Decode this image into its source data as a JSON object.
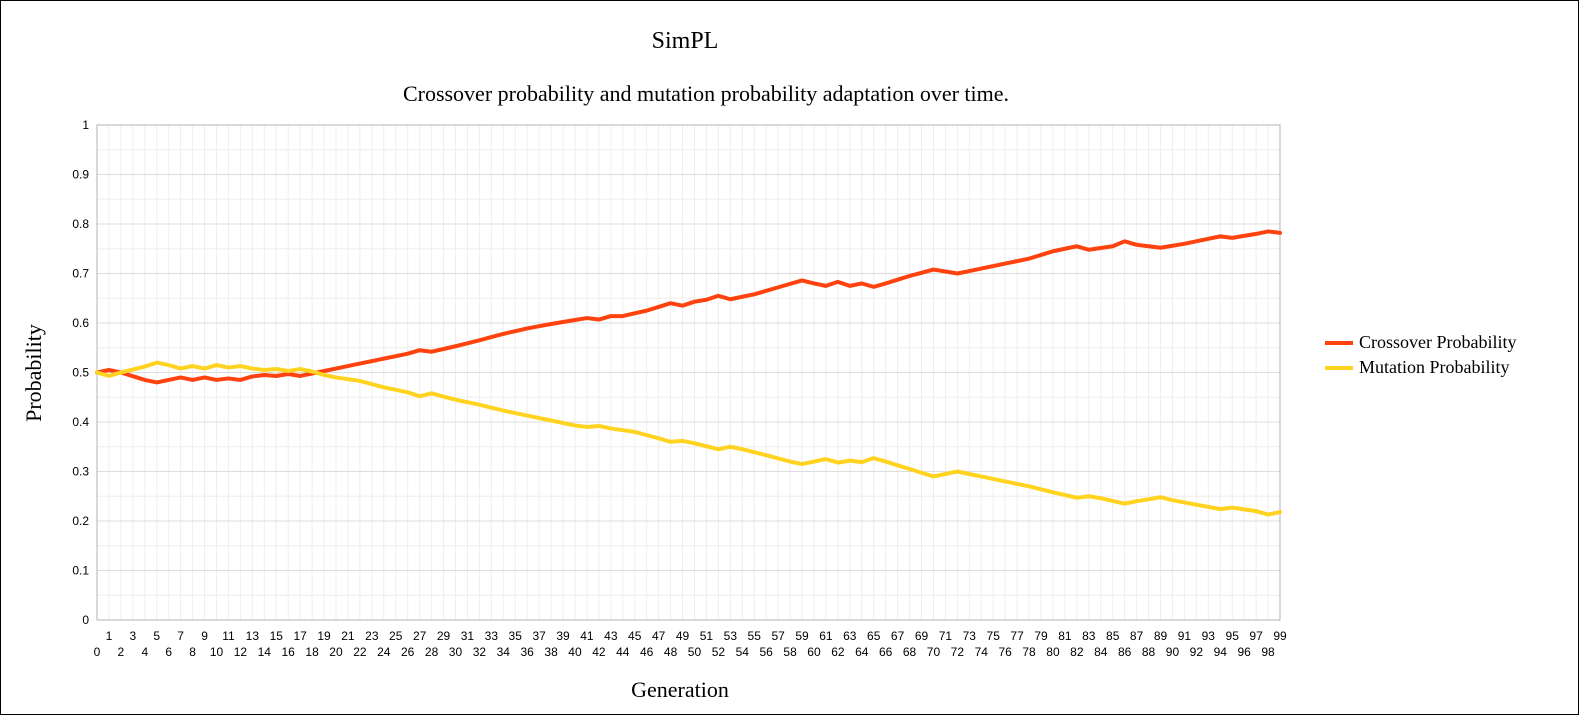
{
  "chart_data": {
    "type": "line",
    "title": "SimPL",
    "subtitle": "Crossover probability and mutation probability adaptation over time.",
    "xlabel": "Generation",
    "ylabel": "Probability",
    "ylim": [
      0,
      1
    ],
    "yticks": [
      "0",
      "0.1",
      "0.2",
      "0.3",
      "0.4",
      "0.5",
      "0.6",
      "0.7",
      "0.8",
      "0.9",
      "1"
    ],
    "xlim": [
      0,
      99
    ],
    "grid": true,
    "legend_position": "right",
    "series": [
      {
        "name": "Crossover Probability",
        "color": "#ff420e",
        "anchors": [
          [
            0,
            0.5
          ],
          [
            1,
            0.505
          ],
          [
            2,
            0.5
          ],
          [
            4,
            0.485
          ],
          [
            5,
            0.48
          ],
          [
            7,
            0.49
          ],
          [
            8,
            0.485
          ],
          [
            9,
            0.49
          ],
          [
            10,
            0.485
          ],
          [
            11,
            0.488
          ],
          [
            12,
            0.485
          ],
          [
            13,
            0.492
          ],
          [
            14,
            0.495
          ],
          [
            15,
            0.493
          ],
          [
            16,
            0.497
          ],
          [
            17,
            0.493
          ],
          [
            18,
            0.498
          ],
          [
            20,
            0.508
          ],
          [
            22,
            0.518
          ],
          [
            24,
            0.528
          ],
          [
            26,
            0.538
          ],
          [
            27,
            0.545
          ],
          [
            28,
            0.542
          ],
          [
            30,
            0.553
          ],
          [
            32,
            0.565
          ],
          [
            34,
            0.578
          ],
          [
            36,
            0.589
          ],
          [
            38,
            0.598
          ],
          [
            40,
            0.606
          ],
          [
            41,
            0.61
          ],
          [
            42,
            0.607
          ],
          [
            43,
            0.614
          ],
          [
            44,
            0.614
          ],
          [
            46,
            0.625
          ],
          [
            48,
            0.64
          ],
          [
            49,
            0.635
          ],
          [
            50,
            0.643
          ],
          [
            51,
            0.647
          ],
          [
            52,
            0.655
          ],
          [
            53,
            0.648
          ],
          [
            55,
            0.658
          ],
          [
            57,
            0.672
          ],
          [
            59,
            0.686
          ],
          [
            60,
            0.68
          ],
          [
            61,
            0.675
          ],
          [
            62,
            0.683
          ],
          [
            63,
            0.675
          ],
          [
            64,
            0.68
          ],
          [
            65,
            0.673
          ],
          [
            66,
            0.68
          ],
          [
            68,
            0.695
          ],
          [
            70,
            0.708
          ],
          [
            72,
            0.7
          ],
          [
            74,
            0.71
          ],
          [
            76,
            0.72
          ],
          [
            78,
            0.73
          ],
          [
            80,
            0.745
          ],
          [
            82,
            0.755
          ],
          [
            83,
            0.748
          ],
          [
            85,
            0.755
          ],
          [
            86,
            0.765
          ],
          [
            87,
            0.758
          ],
          [
            89,
            0.752
          ],
          [
            91,
            0.76
          ],
          [
            93,
            0.77
          ],
          [
            94,
            0.775
          ],
          [
            95,
            0.772
          ],
          [
            97,
            0.78
          ],
          [
            98,
            0.785
          ],
          [
            99,
            0.782
          ]
        ]
      },
      {
        "name": "Mutation Probability",
        "color": "#ffd320",
        "anchors": [
          [
            0,
            0.5
          ],
          [
            1,
            0.493
          ],
          [
            2,
            0.5
          ],
          [
            4,
            0.512
          ],
          [
            5,
            0.52
          ],
          [
            6,
            0.515
          ],
          [
            7,
            0.508
          ],
          [
            8,
            0.513
          ],
          [
            9,
            0.508
          ],
          [
            10,
            0.515
          ],
          [
            11,
            0.51
          ],
          [
            12,
            0.513
          ],
          [
            13,
            0.508
          ],
          [
            14,
            0.505
          ],
          [
            15,
            0.507
          ],
          [
            16,
            0.503
          ],
          [
            17,
            0.507
          ],
          [
            18,
            0.502
          ],
          [
            19,
            0.495
          ],
          [
            20,
            0.49
          ],
          [
            22,
            0.483
          ],
          [
            24,
            0.47
          ],
          [
            26,
            0.46
          ],
          [
            27,
            0.452
          ],
          [
            28,
            0.458
          ],
          [
            30,
            0.445
          ],
          [
            32,
            0.435
          ],
          [
            34,
            0.423
          ],
          [
            36,
            0.413
          ],
          [
            38,
            0.403
          ],
          [
            40,
            0.393
          ],
          [
            41,
            0.39
          ],
          [
            42,
            0.392
          ],
          [
            43,
            0.387
          ],
          [
            45,
            0.38
          ],
          [
            47,
            0.367
          ],
          [
            48,
            0.36
          ],
          [
            49,
            0.362
          ],
          [
            50,
            0.357
          ],
          [
            52,
            0.345
          ],
          [
            53,
            0.35
          ],
          [
            54,
            0.345
          ],
          [
            56,
            0.333
          ],
          [
            58,
            0.32
          ],
          [
            59,
            0.315
          ],
          [
            61,
            0.325
          ],
          [
            62,
            0.318
          ],
          [
            63,
            0.322
          ],
          [
            64,
            0.319
          ],
          [
            65,
            0.327
          ],
          [
            66,
            0.32
          ],
          [
            68,
            0.305
          ],
          [
            70,
            0.29
          ],
          [
            72,
            0.3
          ],
          [
            74,
            0.29
          ],
          [
            76,
            0.28
          ],
          [
            78,
            0.27
          ],
          [
            80,
            0.258
          ],
          [
            82,
            0.247
          ],
          [
            83,
            0.25
          ],
          [
            84,
            0.246
          ],
          [
            86,
            0.235
          ],
          [
            87,
            0.24
          ],
          [
            89,
            0.248
          ],
          [
            90,
            0.242
          ],
          [
            92,
            0.233
          ],
          [
            94,
            0.224
          ],
          [
            95,
            0.227
          ],
          [
            97,
            0.22
          ],
          [
            98,
            0.213
          ],
          [
            99,
            0.218
          ]
        ]
      }
    ]
  }
}
